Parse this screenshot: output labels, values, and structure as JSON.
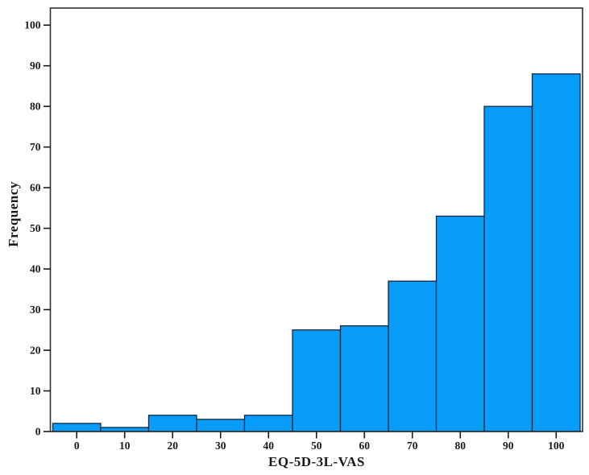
{
  "chart_data": {
    "type": "bar",
    "subtype": "histogram",
    "title": "",
    "xlabel": "EQ-5D-3L-VAS",
    "ylabel": "Frequency",
    "bin_width": 10,
    "bin_centers": [
      0,
      10,
      20,
      30,
      40,
      50,
      60,
      70,
      80,
      90,
      100
    ],
    "values": [
      2,
      1,
      4,
      3,
      4,
      25,
      26,
      37,
      53,
      80,
      88
    ],
    "xticks": [
      0,
      10,
      20,
      30,
      40,
      50,
      60,
      70,
      80,
      90,
      100
    ],
    "yticks": [
      0,
      10,
      20,
      30,
      40,
      50,
      60,
      70,
      80,
      90,
      100
    ],
    "xlim": [
      -5.5,
      105.5
    ],
    "ylim": [
      0,
      104.2
    ],
    "grid": false,
    "legend": null,
    "colors": {
      "bar_fill": "#089df8",
      "bar_stroke": "#14273e",
      "frame_stroke": "#2f2f2f",
      "tick_stroke": "#1a1a1a",
      "text_color": "#1a1a1a",
      "background": "#ffffff"
    }
  }
}
